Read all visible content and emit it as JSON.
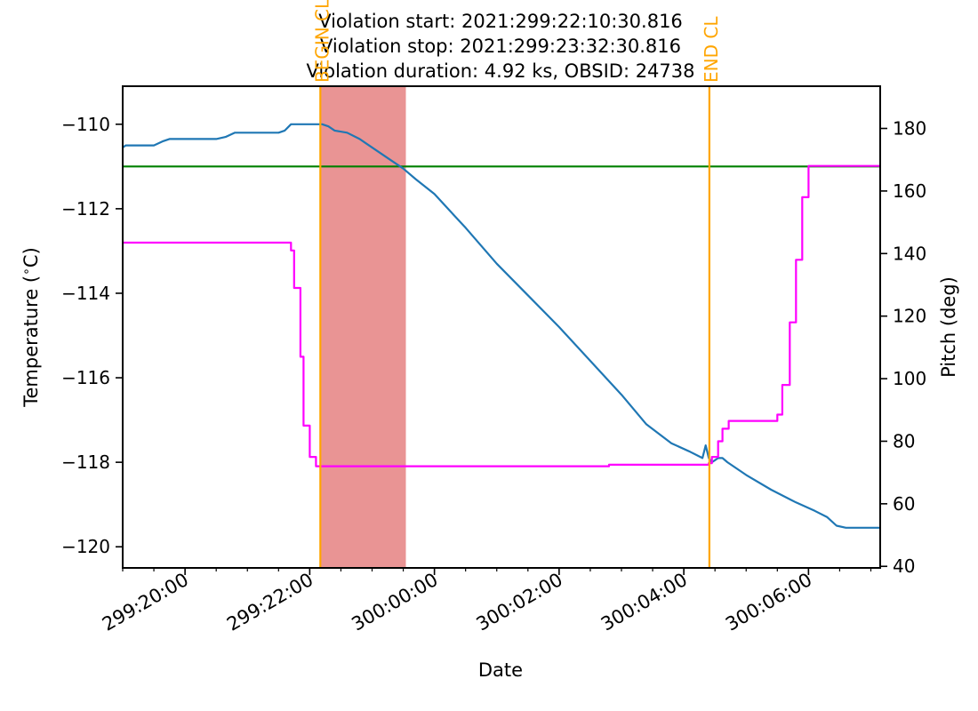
{
  "chart_data": {
    "type": "line",
    "title_lines": [
      "Violation start: 2021:299:22:10:30.816",
      "Violation stop: 2021:299:23:32:30.816",
      "Violation duration: 4.92 ks, OBSID: 24738"
    ],
    "xlabel": "Date",
    "ylabel_left": "Temperature ($^\\circ$C)",
    "ylabel_right": "Pitch (deg)",
    "x_axis_unit": "hours since 2021:299:19:00",
    "xlim": [
      19.0,
      31.15
    ],
    "ylim_left": [
      -120.5,
      -109.1
    ],
    "ylim_right": [
      39.5,
      193.5
    ],
    "x_ticks": [
      {
        "label": "299:20:00",
        "x": 20
      },
      {
        "label": "299:22:00",
        "x": 22
      },
      {
        "label": "300:00:00",
        "x": 24
      },
      {
        "label": "300:02:00",
        "x": 26
      },
      {
        "label": "300:04:00",
        "x": 28
      },
      {
        "label": "300:06:00",
        "x": 30
      }
    ],
    "x_minor_every": 0.5,
    "y_ticks_left": [
      -110,
      -112,
      -114,
      -116,
      -118,
      -120
    ],
    "y_ticks_right": [
      180,
      160,
      140,
      120,
      100,
      80,
      60,
      40
    ],
    "limit_line": {
      "value": -111,
      "color": "#008000"
    },
    "violation_span": {
      "start": 22.175,
      "stop": 23.542,
      "color": "#e06666",
      "opacity": 0.7
    },
    "event_lines": [
      {
        "label": "BEGIN CL",
        "x": 22.17,
        "color": "#ffa500"
      },
      {
        "label": "END CL",
        "x": 28.41,
        "color": "#ffa500"
      }
    ],
    "series": [
      {
        "axis": "left",
        "color": "#1f77b4",
        "step": false,
        "x": [
          19.0,
          19.05,
          19.5,
          19.65,
          19.75,
          20.5,
          20.65,
          20.8,
          21.5,
          21.6,
          21.7,
          22.2,
          22.3,
          22.4,
          22.6,
          22.8,
          22.9,
          23.1,
          23.3,
          23.5,
          23.7,
          24.0,
          24.25,
          24.5,
          25.0,
          25.5,
          26.0,
          26.5,
          27.0,
          27.4,
          27.8,
          28.1,
          28.3,
          28.35,
          28.4,
          28.45,
          28.5,
          28.55,
          28.62,
          28.7,
          28.8,
          29.0,
          29.4,
          29.8,
          30.1,
          30.3,
          30.45,
          30.6,
          31.15
        ],
        "y": [
          -110.55,
          -110.5,
          -110.5,
          -110.4,
          -110.35,
          -110.35,
          -110.3,
          -110.2,
          -110.2,
          -110.15,
          -110.0,
          -110.0,
          -110.05,
          -110.15,
          -110.2,
          -110.35,
          -110.45,
          -110.65,
          -110.85,
          -111.05,
          -111.3,
          -111.65,
          -112.05,
          -112.45,
          -113.3,
          -114.05,
          -114.8,
          -115.6,
          -116.4,
          -117.1,
          -117.55,
          -117.75,
          -117.9,
          -117.6,
          -117.9,
          -118.0,
          -117.95,
          -117.9,
          -117.9,
          -118.0,
          -118.1,
          -118.3,
          -118.65,
          -118.95,
          -119.15,
          -119.3,
          -119.5,
          -119.55,
          -119.55
        ]
      },
      {
        "axis": "right",
        "color": "#ff00ff",
        "step": true,
        "x": [
          19.0,
          21.6,
          21.7,
          21.75,
          21.85,
          21.9,
          22.0,
          22.1,
          22.17,
          23.0,
          26.8,
          28.4,
          28.45,
          28.55,
          28.62,
          28.72,
          28.8,
          29.2,
          29.4,
          29.5,
          29.58,
          29.7,
          29.8,
          29.9,
          30.0,
          31.15
        ],
        "y": [
          143.5,
          143.5,
          141,
          129,
          107,
          85,
          75,
          72,
          72,
          72,
          72.5,
          73,
          75,
          80,
          84,
          86.5,
          86.5,
          86.5,
          86.5,
          88.5,
          98,
          118,
          138,
          158,
          168,
          168
        ]
      }
    ]
  }
}
